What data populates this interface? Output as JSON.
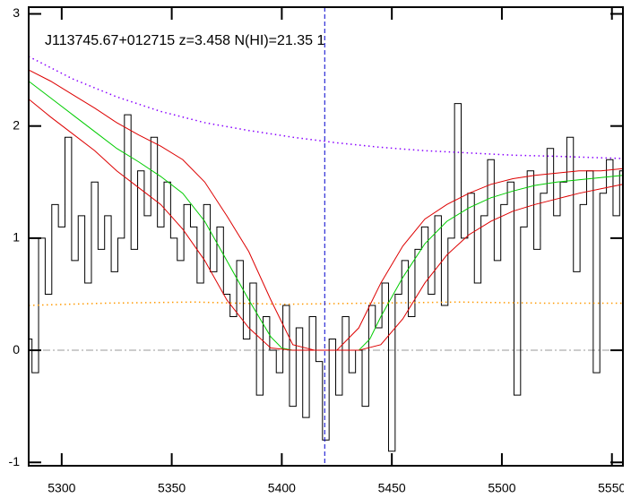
{
  "chart_data": {
    "type": "line",
    "title": "J113745.67+012715 z=3.458 N(HI)=21.35 1",
    "xlim": [
      5285,
      5555
    ],
    "ylim": [
      -1.03,
      3.06
    ],
    "xticks": [
      5300,
      5350,
      5400,
      5450,
      5500,
      5550
    ],
    "yticks": [
      -1,
      0,
      1,
      2,
      3
    ],
    "hline": {
      "value": 0,
      "color": "#999999"
    },
    "vline": {
      "value": 5419.5,
      "color": "#0000cc"
    },
    "series": [
      {
        "color": "#000000",
        "style": "step",
        "x": [
          5285,
          5288,
          5291,
          5294,
          5297,
          5300,
          5303,
          5306,
          5309,
          5312,
          5315,
          5318,
          5321,
          5324,
          5327,
          5330,
          5333,
          5336,
          5339,
          5342,
          5345,
          5348,
          5351,
          5354,
          5357,
          5360,
          5363,
          5366,
          5369,
          5372,
          5375,
          5378,
          5381,
          5384,
          5387,
          5390,
          5393,
          5396,
          5399,
          5402,
          5405,
          5408,
          5411,
          5414,
          5417,
          5420,
          5423,
          5426,
          5429,
          5432,
          5435,
          5438,
          5441,
          5444,
          5447,
          5450,
          5453,
          5456,
          5459,
          5462,
          5465,
          5468,
          5471,
          5474,
          5477,
          5480,
          5483,
          5486,
          5489,
          5492,
          5495,
          5498,
          5501,
          5504,
          5507,
          5510,
          5513,
          5516,
          5519,
          5522,
          5525,
          5528,
          5531,
          5534,
          5537,
          5540,
          5543,
          5546,
          5549,
          5552,
          5555
        ],
        "values": [
          0.1,
          -0.2,
          1.0,
          0.5,
          1.3,
          1.1,
          1.9,
          0.8,
          1.2,
          0.6,
          1.5,
          0.9,
          1.2,
          0.7,
          1.0,
          2.1,
          0.9,
          1.6,
          1.2,
          1.9,
          1.1,
          1.5,
          1.0,
          0.8,
          1.3,
          1.1,
          0.6,
          1.3,
          0.7,
          1.1,
          0.5,
          0.3,
          0.8,
          0.1,
          0.6,
          -0.4,
          0.3,
          0.0,
          -0.2,
          0.4,
          -0.5,
          0.2,
          -0.6,
          0.3,
          -0.1,
          -0.8,
          0.1,
          -0.4,
          0.3,
          -0.2,
          0.0,
          -0.5,
          0.4,
          0.2,
          0.6,
          -0.9,
          0.5,
          0.8,
          0.3,
          0.9,
          1.1,
          0.5,
          1.2,
          0.4,
          1.0,
          2.2,
          1.0,
          1.4,
          0.6,
          1.2,
          1.7,
          0.8,
          1.3,
          1.5,
          -0.4,
          1.1,
          1.6,
          0.9,
          1.4,
          1.8,
          1.2,
          1.5,
          1.9,
          0.7,
          1.3,
          1.6,
          -0.2,
          1.4,
          1.7,
          1.2,
          1.6
        ]
      },
      {
        "color": "#00cc00",
        "style": "line",
        "x": [
          5285,
          5295,
          5305,
          5315,
          5325,
          5335,
          5345,
          5355,
          5365,
          5375,
          5385,
          5395,
          5400,
          5405,
          5415,
          5425,
          5435,
          5440,
          5445,
          5455,
          5465,
          5475,
          5485,
          5495,
          5505,
          5515,
          5525,
          5535,
          5545,
          5555
        ],
        "values": [
          2.4,
          2.25,
          2.1,
          1.95,
          1.8,
          1.68,
          1.55,
          1.4,
          1.15,
          0.8,
          0.45,
          0.12,
          0.02,
          0,
          0,
          0,
          0,
          0.1,
          0.3,
          0.65,
          0.95,
          1.15,
          1.27,
          1.36,
          1.42,
          1.47,
          1.5,
          1.52,
          1.54,
          1.56
        ]
      },
      {
        "color": "#dd0000",
        "style": "line",
        "x": [
          5285,
          5295,
          5305,
          5315,
          5325,
          5335,
          5345,
          5355,
          5365,
          5375,
          5385,
          5395,
          5405,
          5415,
          5425,
          5435,
          5445,
          5455,
          5465,
          5475,
          5485,
          5495,
          5505,
          5515,
          5525,
          5535,
          5545,
          5555
        ],
        "values": [
          2.5,
          2.4,
          2.28,
          2.16,
          2.03,
          1.92,
          1.82,
          1.7,
          1.5,
          1.2,
          0.88,
          0.45,
          0.05,
          0,
          0,
          0.2,
          0.6,
          0.93,
          1.17,
          1.3,
          1.4,
          1.48,
          1.53,
          1.56,
          1.58,
          1.6,
          1.6,
          1.62
        ]
      },
      {
        "color": "#dd0000",
        "style": "line",
        "x": [
          5285,
          5295,
          5305,
          5315,
          5325,
          5335,
          5345,
          5355,
          5365,
          5375,
          5385,
          5395,
          5405,
          5415,
          5425,
          5435,
          5445,
          5455,
          5465,
          5475,
          5485,
          5495,
          5505,
          5515,
          5525,
          5535,
          5545,
          5555
        ],
        "values": [
          2.24,
          2.08,
          1.93,
          1.78,
          1.6,
          1.45,
          1.3,
          1.08,
          0.8,
          0.45,
          0.2,
          0.02,
          0,
          0,
          0,
          0,
          0.05,
          0.28,
          0.6,
          0.85,
          1.03,
          1.15,
          1.24,
          1.3,
          1.35,
          1.4,
          1.44,
          1.48
        ]
      },
      {
        "color": "#8800ff",
        "style": "dotted",
        "x": [
          5285,
          5305,
          5325,
          5345,
          5365,
          5385,
          5405,
          5425,
          5445,
          5465,
          5485,
          5505,
          5525,
          5555
        ],
        "values": [
          2.62,
          2.42,
          2.26,
          2.13,
          2.03,
          1.96,
          1.9,
          1.85,
          1.81,
          1.78,
          1.76,
          1.74,
          1.73,
          1.71
        ]
      },
      {
        "color": "#ff9900",
        "style": "dotted",
        "x": [
          5285,
          5320,
          5360,
          5400,
          5440,
          5480,
          5520,
          5555
        ],
        "values": [
          0.4,
          0.42,
          0.43,
          0.41,
          0.42,
          0.43,
          0.42,
          0.42
        ]
      }
    ]
  }
}
